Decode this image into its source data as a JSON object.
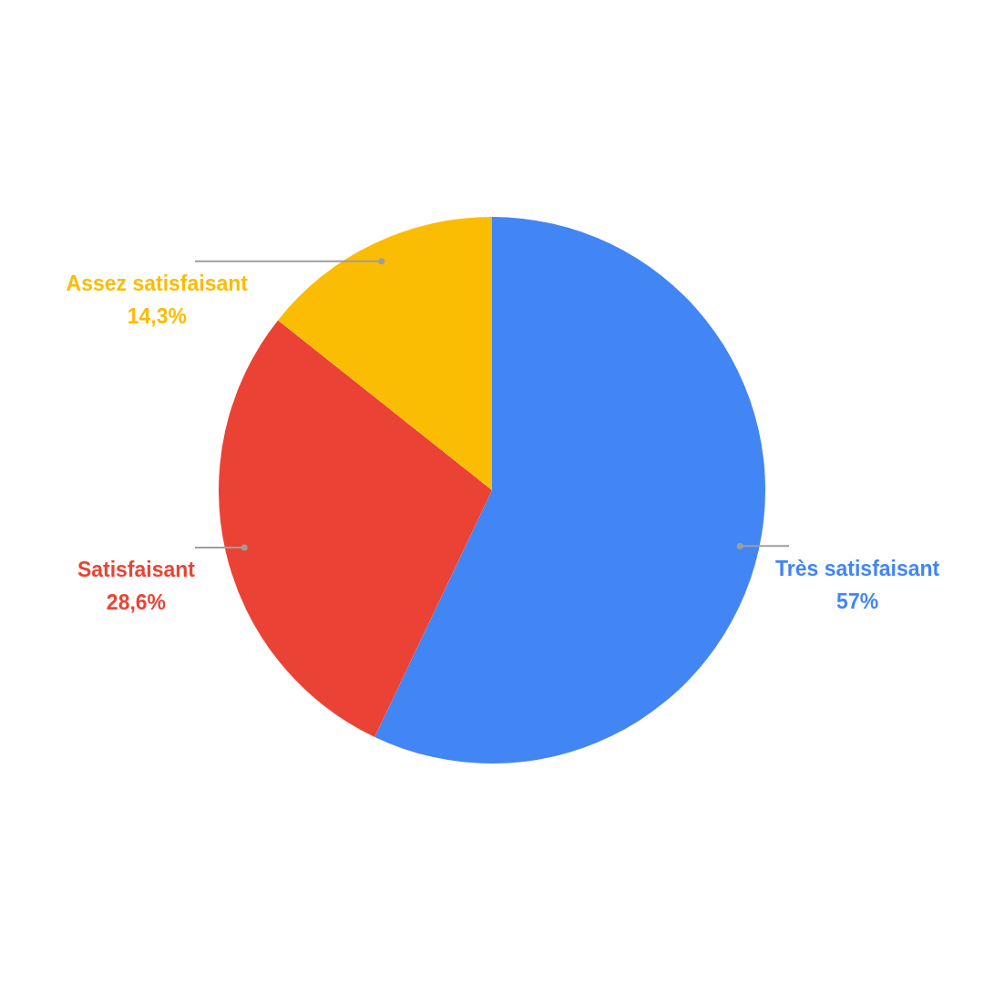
{
  "chart_data": {
    "type": "pie",
    "categories": [
      "Très satisfaisant",
      "Satisfaisant",
      "Assez satisfaisant"
    ],
    "values": [
      57,
      28.6,
      14.3
    ],
    "colors": [
      "#4285f4",
      "#ea4335",
      "#fbbc04"
    ],
    "value_labels": [
      "57%",
      "28,6%",
      "14,3%"
    ]
  }
}
